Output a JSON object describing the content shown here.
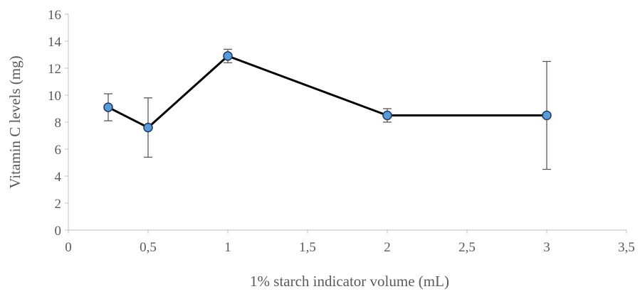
{
  "chart_data": {
    "type": "scatter",
    "title": "",
    "xlabel": "1% starch indicator volume (mL)",
    "ylabel": "Vitamin C levels (mg)",
    "xlim": [
      0,
      3.5
    ],
    "ylim": [
      0,
      16
    ],
    "x_ticks": [
      0,
      0.5,
      1,
      1.5,
      2,
      2.5,
      3,
      3.5
    ],
    "x_tick_labels": [
      "0",
      "0,5",
      "1",
      "1,5",
      "2",
      "2,5",
      "3",
      "3,5"
    ],
    "y_ticks": [
      0,
      2,
      4,
      6,
      8,
      10,
      12,
      14,
      16
    ],
    "y_tick_labels": [
      "0",
      "2",
      "4",
      "6",
      "8",
      "10",
      "12",
      "14",
      "16"
    ],
    "grid": false,
    "series": [
      {
        "x": [
          0.25,
          0.5,
          1,
          2,
          3
        ],
        "y": [
          9.1,
          7.6,
          12.9,
          8.5,
          8.5
        ],
        "error": [
          1.0,
          2.2,
          0.5,
          0.5,
          4.0
        ],
        "line_color": "#000000",
        "marker_color": "#5B9BD5",
        "marker_edge": "#1F3864"
      }
    ]
  }
}
